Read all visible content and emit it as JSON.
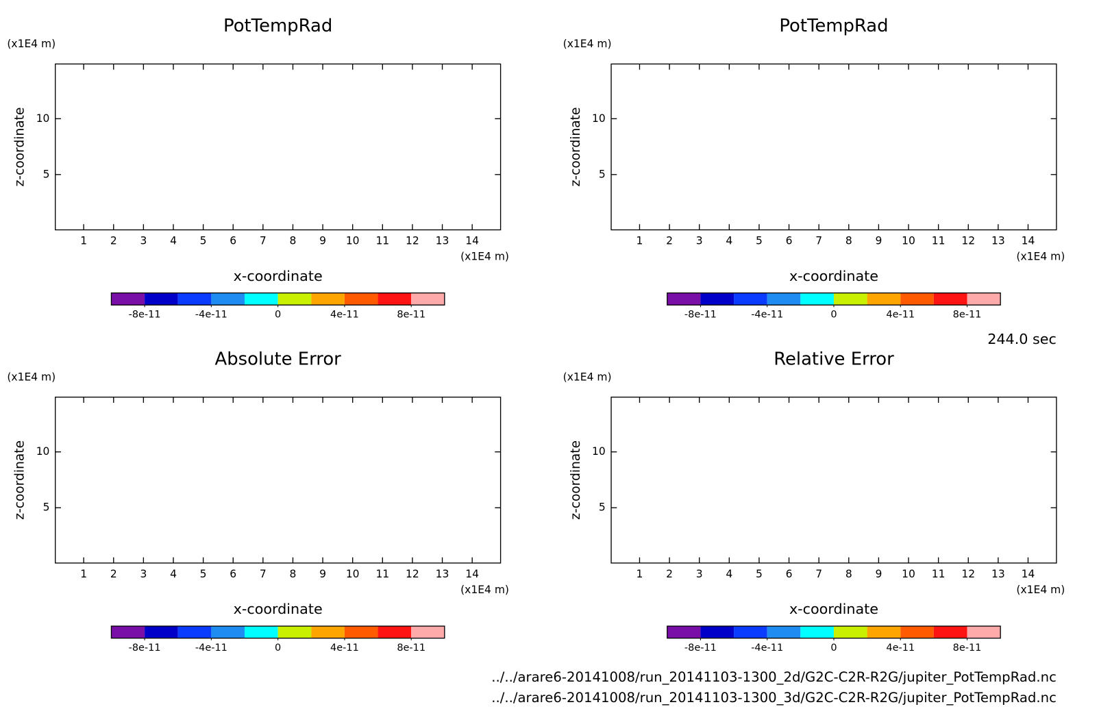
{
  "chart_data": [
    {
      "type": "contour",
      "title": "PotTempRad",
      "x_label": "x-coordinate",
      "y_label": "z-coordinate",
      "x_unit": "(x1E4 m)",
      "y_unit": "(x1E4 m)",
      "xlim": [
        0.05,
        14.95
      ],
      "ylim": [
        0.05,
        14.9
      ],
      "xticks": [
        1,
        2,
        3,
        4,
        5,
        6,
        7,
        8,
        9,
        10,
        11,
        12,
        13,
        14
      ],
      "yticks": [
        5,
        10
      ],
      "colorbar": {
        "lim": [
          -1e-10,
          1e-10
        ],
        "colors": [
          "#7a0fa8",
          "#0000c8",
          "#0a3cff",
          "#1e8cf0",
          "#00ffff",
          "#c8f000",
          "#ffa500",
          "#ff5a00",
          "#ff1414",
          "#ffaaaa"
        ],
        "ticks": [
          {
            "value": -8e-11,
            "label": "-8e-11"
          },
          {
            "value": -4e-11,
            "label": "-4e-11"
          },
          0,
          {
            "value": 4e-11,
            "label": "4e-11"
          },
          {
            "value": 8e-11,
            "label": "8e-11"
          }
        ]
      }
    },
    {
      "type": "contour",
      "title": "PotTempRad",
      "x_label": "x-coordinate",
      "y_label": "z-coordinate",
      "x_unit": "(x1E4 m)",
      "y_unit": "(x1E4 m)",
      "xlim": [
        0.05,
        14.95
      ],
      "ylim": [
        0.05,
        14.9
      ],
      "xticks": [
        1,
        2,
        3,
        4,
        5,
        6,
        7,
        8,
        9,
        10,
        11,
        12,
        13,
        14
      ],
      "yticks": [
        5,
        10
      ],
      "colorbar": {
        "lim": [
          -1e-10,
          1e-10
        ],
        "colors": [
          "#7a0fa8",
          "#0000c8",
          "#0a3cff",
          "#1e8cf0",
          "#00ffff",
          "#c8f000",
          "#ffa500",
          "#ff5a00",
          "#ff1414",
          "#ffaaaa"
        ],
        "ticks": [
          {
            "value": -8e-11,
            "label": "-8e-11"
          },
          {
            "value": -4e-11,
            "label": "-4e-11"
          },
          0,
          {
            "value": 4e-11,
            "label": "4e-11"
          },
          {
            "value": 8e-11,
            "label": "8e-11"
          }
        ]
      }
    },
    {
      "type": "contour",
      "title": "Absolute Error",
      "x_label": "x-coordinate",
      "y_label": "z-coordinate",
      "x_unit": "(x1E4 m)",
      "y_unit": "(x1E4 m)",
      "xlim": [
        0.05,
        14.95
      ],
      "ylim": [
        0.05,
        14.9
      ],
      "xticks": [
        1,
        2,
        3,
        4,
        5,
        6,
        7,
        8,
        9,
        10,
        11,
        12,
        13,
        14
      ],
      "yticks": [
        5,
        10
      ],
      "colorbar": {
        "lim": [
          -1e-10,
          1e-10
        ],
        "colors": [
          "#7a0fa8",
          "#0000c8",
          "#0a3cff",
          "#1e8cf0",
          "#00ffff",
          "#c8f000",
          "#ffa500",
          "#ff5a00",
          "#ff1414",
          "#ffaaaa"
        ],
        "ticks": [
          {
            "value": -8e-11,
            "label": "-8e-11"
          },
          {
            "value": -4e-11,
            "label": "-4e-11"
          },
          0,
          {
            "value": 4e-11,
            "label": "4e-11"
          },
          {
            "value": 8e-11,
            "label": "8e-11"
          }
        ]
      }
    },
    {
      "type": "contour",
      "title": "Relative Error",
      "x_label": "x-coordinate",
      "y_label": "z-coordinate",
      "x_unit": "(x1E4 m)",
      "y_unit": "(x1E4 m)",
      "xlim": [
        0.05,
        14.95
      ],
      "ylim": [
        0.05,
        14.9
      ],
      "xticks": [
        1,
        2,
        3,
        4,
        5,
        6,
        7,
        8,
        9,
        10,
        11,
        12,
        13,
        14
      ],
      "yticks": [
        5,
        10
      ],
      "colorbar": {
        "lim": [
          -1e-10,
          1e-10
        ],
        "colors": [
          "#7a0fa8",
          "#0000c8",
          "#0a3cff",
          "#1e8cf0",
          "#00ffff",
          "#c8f000",
          "#ffa500",
          "#ff5a00",
          "#ff1414",
          "#ffaaaa"
        ],
        "ticks": [
          {
            "value": -8e-11,
            "label": "-8e-11"
          },
          {
            "value": -4e-11,
            "label": "-4e-11"
          },
          0,
          {
            "value": 4e-11,
            "label": "4e-11"
          },
          {
            "value": 8e-11,
            "label": "8e-11"
          }
        ]
      }
    }
  ],
  "time_label": "244.0 sec",
  "files": [
    "../../arare6-20141008/run_20141103-1300_2d/G2C-C2R-R2G/jupiter_PotTempRad.nc",
    "../../arare6-20141008/run_20141103-1300_3d/G2C-C2R-R2G/jupiter_PotTempRad.nc"
  ]
}
